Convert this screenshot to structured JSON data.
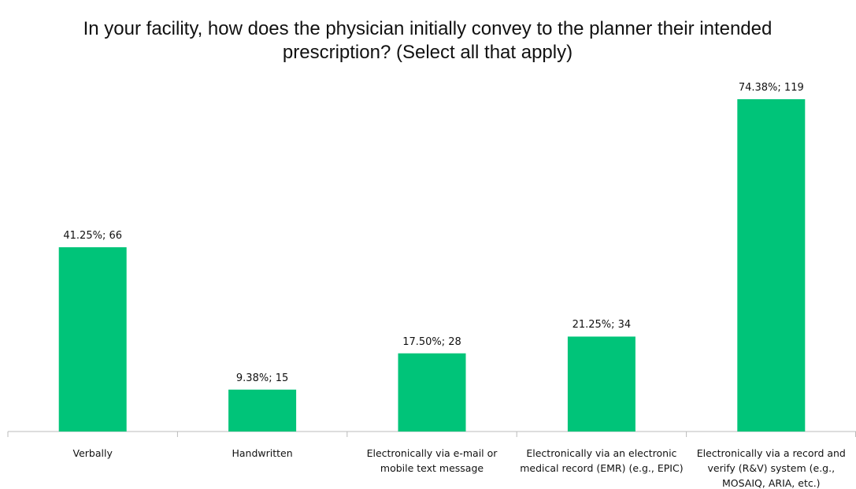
{
  "chart_data": {
    "type": "bar",
    "title": "In your facility, how does the physician initially convey to the planner their intended prescription? (Select all that apply)",
    "categories": [
      "Verbally",
      "Handwritten",
      "Electronically via e-mail or mobile text message",
      "Electronically via an electronic medical record (EMR) (e.g., EPIC)",
      "Electronically via a record and verify (R&V) system (e.g., MOSAIQ, ARIA, etc.)"
    ],
    "values": [
      41.25,
      9.38,
      17.5,
      21.25,
      74.38
    ],
    "value_labels": [
      "41.25%; 66",
      "9.38%; 15",
      "17.50%; 28",
      "21.25%; 34",
      "74.38%; 119"
    ],
    "color": "#00c479"
  }
}
